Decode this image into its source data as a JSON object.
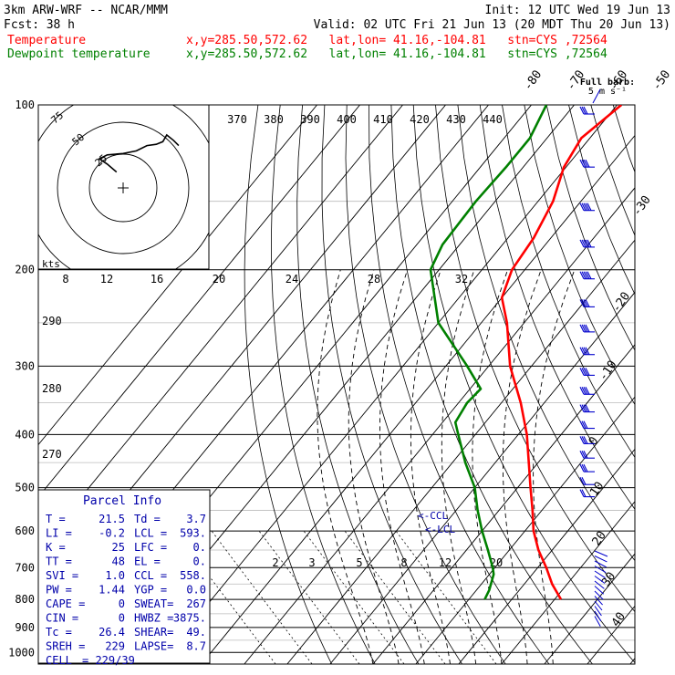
{
  "header": {
    "model": "3km ARW-WRF -- NCAR/MMM",
    "init": "Init: 12 UTC Wed 19 Jun 13",
    "fcst_label": "Fcst:",
    "fcst_value": "38 h",
    "valid": "Valid: 02 UTC Fri 21 Jun 13 (20 MDT Thu 20 Jun 13)",
    "temp_label": "Temperature",
    "temp_loc": "x,y=285.50,572.62   lat,lon= 41.16,-104.81   stn=CYS ,72564",
    "dew_label": "Dewpoint temperature",
    "dew_loc": "x,y=285.50,572.62   lat,lon= 41.16,-104.81   stn=CYS ,72564"
  },
  "barb_legend": {
    "title": "Full barb:",
    "unit": "5 m s⁻¹"
  },
  "hodograph": {
    "units_label": "kts",
    "rings": [
      "25",
      "50",
      "75"
    ]
  },
  "parcel_info": {
    "title": "Parcel Info",
    "rows": [
      {
        "k1": "T",
        "v1": "21.5",
        "k2": "Td",
        "v2": "3.7"
      },
      {
        "k1": "LI",
        "v1": "-0.2",
        "k2": "LCL",
        "v2": "593."
      },
      {
        "k1": "K",
        "v1": "25",
        "k2": "LFC",
        "v2": "0."
      },
      {
        "k1": "TT",
        "v1": "48",
        "k2": "EL",
        "v2": "0."
      },
      {
        "k1": "SVI",
        "v1": "1.0",
        "k2": "CCL",
        "v2": "558."
      },
      {
        "k1": "PW",
        "v1": "1.44",
        "k2": "YGP",
        "v2": "0.0"
      },
      {
        "k1": "CAPE",
        "v1": "0",
        "k2": "SWEAT",
        "v2": "267"
      },
      {
        "k1": "CIN",
        "v1": "0",
        "k2": "HWBZ",
        "v2": "3875."
      },
      {
        "k1": "Tc",
        "v1": "26.4",
        "k2": "SHEAR",
        "v2": "49."
      },
      {
        "k1": "SREH",
        "v1": "229",
        "k2": "LAPSE",
        "v2": "8.7"
      },
      {
        "k1": "CELL",
        "v1": "229/39",
        "k2": "",
        "v2": ""
      }
    ]
  },
  "markers": {
    "ccl": "<-CCL",
    "lcl": "<-LCL"
  },
  "colors": {
    "temperature": "#ff0000",
    "dewpoint": "#008000",
    "barbs": "#0000cc",
    "grid": "#000000",
    "label_red": "#ff0000",
    "label_green": "#008000"
  },
  "chart_data": {
    "type": "line",
    "title": "",
    "xlabel": "",
    "ylabel": "",
    "pressure_levels": [
      100,
      200,
      300,
      400,
      500,
      600,
      700,
      800,
      900,
      1000
    ],
    "pressure_labels": [
      "100",
      "200",
      "300",
      "400",
      "500",
      "600",
      "700",
      "800",
      "900",
      "1000"
    ],
    "isotherm_labels_top": [
      "-80",
      "-70",
      "-60",
      "-50",
      "-40"
    ],
    "isotherm_labels_right": [
      "-30",
      "-20",
      "-10",
      "0",
      "10",
      "20",
      "30",
      "40"
    ],
    "theta_labels": [
      "370",
      "380",
      "390",
      "400",
      "410",
      "420",
      "430",
      "440"
    ],
    "theta_e_labels": [
      "290",
      "280",
      "270"
    ],
    "mixing_ratio_labels": [
      "2",
      "3",
      "5",
      "8",
      "12",
      "20"
    ],
    "moist_labels": [
      "8",
      "12",
      "16",
      "20",
      "24",
      "28",
      "32"
    ],
    "series": [
      {
        "name": "Temperature",
        "points": [
          [
            800,
            21.5
          ],
          [
            750,
            16.5
          ],
          [
            700,
            12.0
          ],
          [
            650,
            6.8
          ],
          [
            600,
            2.0
          ],
          [
            550,
            -2.2
          ],
          [
            500,
            -7.0
          ],
          [
            450,
            -12.2
          ],
          [
            400,
            -18.0
          ],
          [
            350,
            -25.5
          ],
          [
            300,
            -35.0
          ],
          [
            250,
            -44.0
          ],
          [
            225,
            -50.0
          ],
          [
            200,
            -53.0
          ],
          [
            175,
            -54.0
          ],
          [
            150,
            -56.5
          ],
          [
            130,
            -60.5
          ],
          [
            115,
            -62.0
          ],
          [
            100,
            -59.0
          ]
        ]
      },
      {
        "name": "Dewpoint temperature",
        "points": [
          [
            800,
            3.7
          ],
          [
            770,
            3.0
          ],
          [
            720,
            1.0
          ],
          [
            700,
            -0.5
          ],
          [
            650,
            -5.0
          ],
          [
            600,
            -10.0
          ],
          [
            550,
            -15.0
          ],
          [
            500,
            -20.0
          ],
          [
            450,
            -27.0
          ],
          [
            400,
            -34.0
          ],
          [
            380,
            -37.0
          ],
          [
            350,
            -38.0
          ],
          [
            330,
            -37.5
          ],
          [
            300,
            -45.0
          ],
          [
            250,
            -60.0
          ],
          [
            200,
            -72.0
          ],
          [
            180,
            -74.0
          ],
          [
            150,
            -74.5
          ],
          [
            130,
            -74.0
          ],
          [
            115,
            -74.0
          ],
          [
            100,
            -76.5
          ]
        ]
      }
    ],
    "hodograph_path_kts": [
      [
        -5,
        12
      ],
      [
        -12,
        18
      ],
      [
        -18,
        22
      ],
      [
        -12,
        25
      ],
      [
        0,
        26
      ],
      [
        10,
        28
      ],
      [
        18,
        32
      ],
      [
        25,
        33
      ],
      [
        30,
        35
      ],
      [
        33,
        40
      ],
      [
        38,
        36
      ],
      [
        42,
        32
      ]
    ],
    "wind_barbs": [
      {
        "p": 100,
        "spd": 15
      },
      {
        "p": 125,
        "spd": 20
      },
      {
        "p": 150,
        "spd": 25
      },
      {
        "p": 175,
        "spd": 25
      },
      {
        "p": 200,
        "spd": 25
      },
      {
        "p": 225,
        "spd": 20
      },
      {
        "p": 250,
        "spd": 20
      },
      {
        "p": 275,
        "spd": 20
      },
      {
        "p": 300,
        "spd": 20
      },
      {
        "p": 325,
        "spd": 20
      },
      {
        "p": 350,
        "spd": 20
      },
      {
        "p": 375,
        "spd": 15
      },
      {
        "p": 400,
        "spd": 15
      },
      {
        "p": 425,
        "spd": 15
      },
      {
        "p": 450,
        "spd": 15
      },
      {
        "p": 475,
        "spd": 10
      },
      {
        "p": 500,
        "spd": 10
      }
    ]
  }
}
